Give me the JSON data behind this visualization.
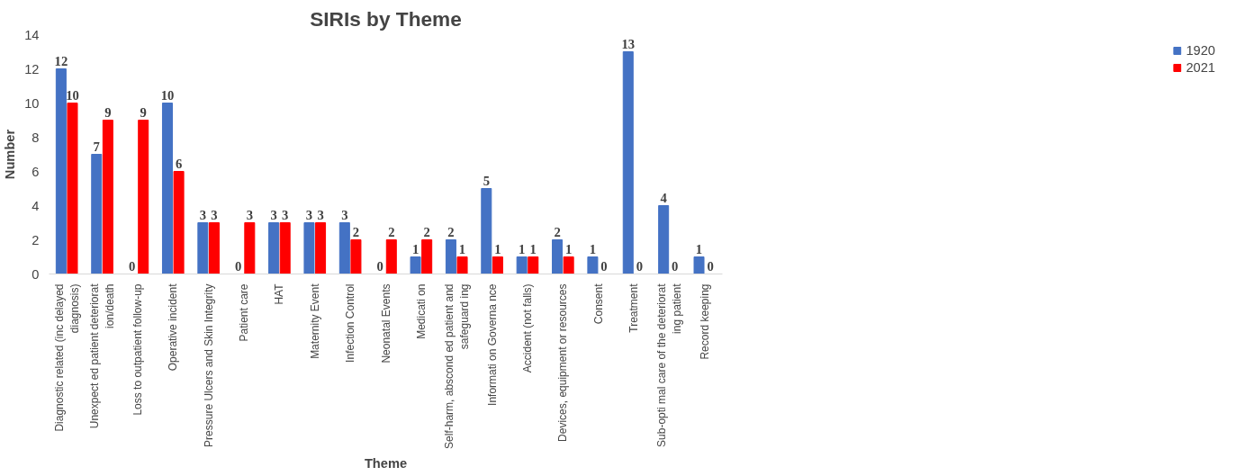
{
  "chart_data": {
    "type": "bar",
    "title": "SIRIs by Theme",
    "xlabel": "Theme",
    "ylabel": "Number",
    "categories": [
      "Diagnostic related (inc delayed diagnosis)",
      "Unexpect ed patient deteriorat ion/death",
      "Loss to outpatient follow-up",
      "Operative incident",
      "Pressure Ulcers and Skin Integrity",
      "Patient care",
      "HAT",
      "Maternity Event",
      "Infection Control",
      "Neonatal Events",
      "Medicati on",
      "Self-harm, abscond ed patient and safeguard ing",
      "Informati on Governa nce",
      "Accident (not falls)",
      "Devices, equipment or resources",
      "Consent",
      "Treatment",
      "Sub-opti mal care of the deteriorat ing patient",
      "Record keeping"
    ],
    "series": [
      {
        "name": "1920",
        "color": "#4472c4",
        "values": [
          12,
          7,
          0,
          10,
          3,
          0,
          3,
          3,
          3,
          0,
          1,
          2,
          5,
          1,
          2,
          1,
          13,
          4,
          1
        ]
      },
      {
        "name": "2021",
        "color": "#ff0000",
        "values": [
          10,
          9,
          9,
          6,
          3,
          3,
          3,
          3,
          2,
          2,
          2,
          1,
          1,
          1,
          1,
          0,
          0,
          0,
          0
        ]
      }
    ],
    "ylim": [
      0,
      14
    ],
    "yticks": [
      0,
      2,
      4,
      6,
      8,
      10,
      12,
      14
    ],
    "grid": false,
    "legend": "top right",
    "data_labels": true
  }
}
